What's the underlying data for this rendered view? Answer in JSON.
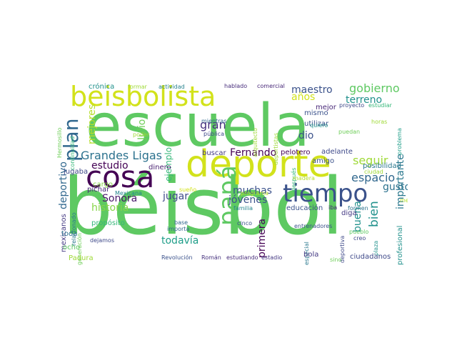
{
  "words": [
    {
      "t": "béisbol",
      "c": "#5ec962"
    },
    {
      "t": "escuela",
      "c": "#5ec962"
    },
    {
      "t": "deporte",
      "c": "#d2e21b"
    },
    {
      "t": "cosa",
      "c": "#440154"
    },
    {
      "t": "beisbolista",
      "c": "#d2e21b"
    },
    {
      "t": "tiempo",
      "c": "#3b528b"
    },
    {
      "t": "papá",
      "c": "#5ec962"
    },
    {
      "t": "plan",
      "c": "#31688e"
    },
    {
      "t": "Grandes Ligas",
      "c": "#2c728e"
    },
    {
      "t": "bien",
      "c": "#21918c"
    },
    {
      "t": "gobierno",
      "c": "#5ec962"
    },
    {
      "t": "terreno",
      "c": "#21918c"
    },
    {
      "t": "espacio",
      "c": "#31688e"
    },
    {
      "t": "maestro",
      "c": "#3b528b"
    },
    {
      "t": "seguir",
      "c": "#a0da39"
    },
    {
      "t": "años",
      "c": "#d2e21b"
    },
    {
      "t": "Fernando",
      "c": "#440154"
    },
    {
      "t": "mejores",
      "c": "#b5de2b"
    },
    {
      "t": "estudio",
      "c": "#440154"
    },
    {
      "t": "gran",
      "c": "#46327e"
    },
    {
      "t": "dio",
      "c": "#3b528b"
    },
    {
      "t": "muchas",
      "c": "#3b528b"
    },
    {
      "t": "jóvenes",
      "c": "#3b528b"
    },
    {
      "t": "jugar",
      "c": "#3e4989"
    },
    {
      "t": "Sonora",
      "c": "#48186a"
    },
    {
      "t": "historia",
      "c": "#86d549"
    },
    {
      "t": "deportivo",
      "c": "#31688e"
    },
    {
      "t": "primera",
      "c": "#440154"
    },
    {
      "t": "buena",
      "c": "#21918c"
    },
    {
      "t": "todavía",
      "c": "#1f9e89"
    },
    {
      "t": "importante",
      "c": "#2a788e"
    },
    {
      "t": "gusto",
      "c": "#2c728e"
    },
    {
      "t": "Julio",
      "c": "#6ece58"
    },
    {
      "t": "ejemplo",
      "c": "#35b779"
    },
    {
      "t": "profesional",
      "c": "#21918c"
    },
    {
      "t": "crónica",
      "c": "#21918c"
    },
    {
      "t": "formar",
      "c": "#a0da39"
    },
    {
      "t": "actividad",
      "c": "#26828e"
    },
    {
      "t": "hablado",
      "c": "#472d7b"
    },
    {
      "t": "comercial",
      "c": "#482878"
    },
    {
      "t": "proyecto",
      "c": "#3e4989"
    },
    {
      "t": "estudiar",
      "c": "#35b779"
    },
    {
      "t": "Hermosillo",
      "c": "#6ece58"
    },
    {
      "t": "continuidad",
      "c": "#35b779"
    },
    {
      "t": "poder",
      "c": "#a0da39"
    },
    {
      "t": "mientras",
      "c": "#31688e"
    },
    {
      "t": "pública",
      "c": "#3e4989"
    },
    {
      "t": "arquitecto",
      "c": "#a0da39"
    },
    {
      "t": "deportistas",
      "c": "#a0da39"
    },
    {
      "t": "mismo",
      "c": "#3b528b"
    },
    {
      "t": "utilizar",
      "c": "#3b528b"
    },
    {
      "t": "quiero",
      "c": "#21918c"
    },
    {
      "t": "puedan",
      "c": "#6ece58"
    },
    {
      "t": "horas",
      "c": "#a0da39"
    },
    {
      "t": "problema",
      "c": "#1f9e89"
    },
    {
      "t": "mejor",
      "c": "#482878"
    },
    {
      "t": "buscar",
      "c": "#443983"
    },
    {
      "t": "pelotero",
      "c": "#440154"
    },
    {
      "t": "adelante",
      "c": "#3e4989"
    },
    {
      "t": "dinero",
      "c": "#481f70"
    },
    {
      "t": "amigo",
      "c": "#3b528b"
    },
    {
      "t": "posibilidad",
      "c": "#2a788e"
    },
    {
      "t": "ciudad",
      "c": "#a0da39"
    },
    {
      "t": "cargo",
      "c": "#86d549"
    },
    {
      "t": "jugaba",
      "c": "#3e4989"
    },
    {
      "t": "píchar",
      "c": "#482878"
    },
    {
      "t": "Mexicana",
      "c": "#25858e"
    },
    {
      "t": "sueño",
      "c": "#d2e21b"
    },
    {
      "t": "programa",
      "c": "#b5de2b"
    },
    {
      "t": "después",
      "c": "#35b779"
    },
    {
      "t": "madera",
      "c": "#b5de2b"
    },
    {
      "t": "mexicanos",
      "c": "#443983"
    },
    {
      "t": "relacionado",
      "c": "#2a788e"
    },
    {
      "t": "toda",
      "c": "#2c728e"
    },
    {
      "t": "propósito",
      "c": "#35b779"
    },
    {
      "t": "base",
      "c": "#31688e"
    },
    {
      "t": "importa",
      "c": "#31688e"
    },
    {
      "t": "familia",
      "c": "#25858e"
    },
    {
      "t": "educación",
      "c": "#3b528b"
    },
    {
      "t": "entrenadores",
      "c": "#3b528b"
    },
    {
      "t": "iba",
      "c": "#482878"
    },
    {
      "t": "formen",
      "c": "#2c728e"
    },
    {
      "t": "diga",
      "c": "#443983"
    },
    {
      "t": "deportiva",
      "c": "#3e4989"
    },
    {
      "t": "especial",
      "c": "#2a788e"
    },
    {
      "t": "cinco",
      "c": "#3b528b"
    },
    {
      "t": "pueblo",
      "c": "#5ec962"
    },
    {
      "t": "creo",
      "c": "#3e4989"
    },
    {
      "t": "plaza",
      "c": "#21918c"
    },
    {
      "t": "sino",
      "c": "#6ece58"
    },
    {
      "t": "dejamos",
      "c": "#3e4989"
    },
    {
      "t": "generación",
      "c": "#6ece58"
    },
    {
      "t": "ocho",
      "c": "#5ec962"
    },
    {
      "t": "Padura",
      "c": "#a0da39"
    },
    {
      "t": "Revolución",
      "c": "#3b528b"
    },
    {
      "t": "Román",
      "c": "#46327e"
    },
    {
      "t": "estudiando",
      "c": "#472d7b"
    },
    {
      "t": "estadio",
      "c": "#443983"
    },
    {
      "t": "bola",
      "c": "#443983"
    },
    {
      "t": "ciudadanos",
      "c": "#3e4989"
    },
    {
      "t": "mesa",
      "c": "#b5de2b"
    }
  ]
}
